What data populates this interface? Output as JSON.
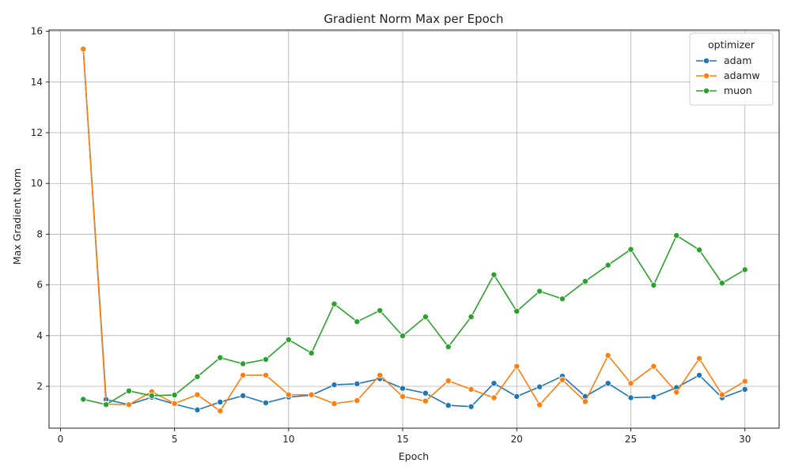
{
  "chart_data": {
    "type": "line",
    "title": "Gradient Norm Max per Epoch",
    "xlabel": "Epoch",
    "ylabel": "Max Gradient Norm",
    "xlim": [
      -0.5,
      31.5
    ],
    "ylim": [
      0.35,
      16.05
    ],
    "xticks": [
      0,
      5,
      10,
      15,
      20,
      25,
      30
    ],
    "yticks": [
      2,
      4,
      6,
      8,
      10,
      12,
      14,
      16
    ],
    "grid": true,
    "legend_title": "optimizer",
    "legend_position": "top-right",
    "x": [
      1,
      2,
      3,
      4,
      5,
      6,
      7,
      8,
      9,
      10,
      11,
      12,
      13,
      14,
      15,
      16,
      17,
      18,
      19,
      20,
      21,
      22,
      23,
      24,
      25,
      26,
      27,
      28,
      29,
      30
    ],
    "series": [
      {
        "name": "adam",
        "color": "#1f77b4",
        "values": [
          15.3,
          1.48,
          1.28,
          1.57,
          1.3,
          1.07,
          1.38,
          1.63,
          1.35,
          1.58,
          1.65,
          2.06,
          2.1,
          2.3,
          1.92,
          1.73,
          1.25,
          1.2,
          2.12,
          1.6,
          1.98,
          2.4,
          1.6,
          2.12,
          1.55,
          1.58,
          1.95,
          2.44,
          1.55,
          1.88
        ]
      },
      {
        "name": "adamw",
        "color": "#ff7f0e",
        "values": [
          15.3,
          1.3,
          1.28,
          1.79,
          1.32,
          1.67,
          1.03,
          2.44,
          2.44,
          1.67,
          1.67,
          1.32,
          1.44,
          2.44,
          1.6,
          1.42,
          2.22,
          1.88,
          1.55,
          2.79,
          1.27,
          2.26,
          1.4,
          3.22,
          2.12,
          2.79,
          1.77,
          3.1,
          1.67,
          2.2
        ]
      },
      {
        "name": "muon",
        "color": "#2ca02c",
        "values": [
          1.49,
          1.28,
          1.82,
          1.63,
          1.66,
          2.38,
          3.13,
          2.89,
          3.06,
          3.84,
          3.31,
          5.25,
          4.55,
          4.99,
          3.99,
          4.74,
          3.56,
          4.74,
          6.4,
          4.96,
          5.75,
          5.45,
          6.14,
          6.78,
          7.4,
          5.99,
          7.95,
          7.38,
          6.07,
          6.6
        ]
      }
    ]
  }
}
